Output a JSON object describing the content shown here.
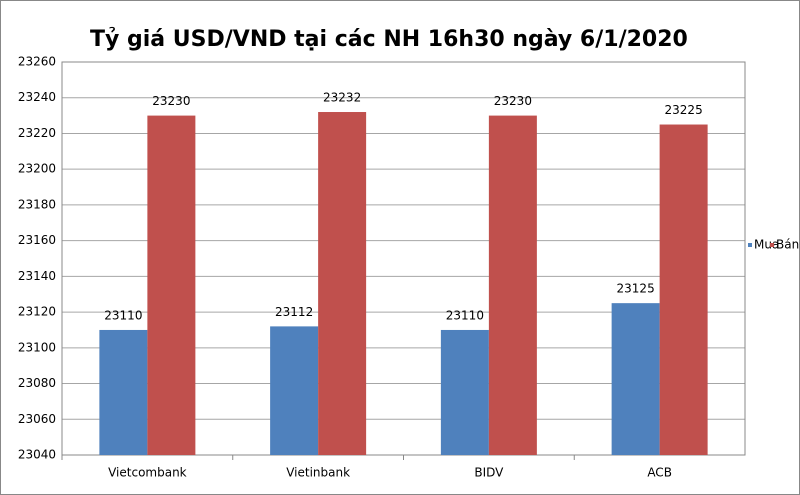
{
  "chart_data": {
    "type": "bar",
    "title": "Tỷ giá USD/VND tại các NH 16h30 ngày 6/1/2020",
    "categories": [
      "Vietcombank",
      "Vietinbank",
      "BIDV",
      "ACB"
    ],
    "series": [
      {
        "name": "Mua",
        "color": "#4f81bd",
        "values": [
          23110,
          23112,
          23110,
          23125
        ]
      },
      {
        "name": "Bán",
        "color": "#c0504d",
        "values": [
          23230,
          23232,
          23230,
          23225
        ]
      }
    ],
    "ylim": [
      23040,
      23260
    ],
    "yticks": [
      23040,
      23060,
      23080,
      23100,
      23120,
      23140,
      23160,
      23180,
      23200,
      23220,
      23240,
      23260
    ],
    "grid": true,
    "legend": "right"
  }
}
